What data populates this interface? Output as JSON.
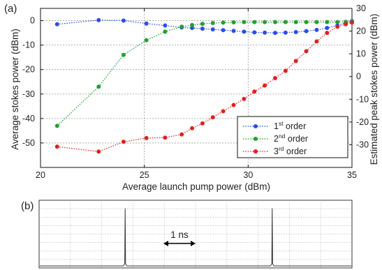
{
  "panel_a_label": "(a)",
  "panel_b_label": "(b)",
  "chart_data": [
    {
      "type": "line",
      "xlabel": "Average launch pump power (dBm)",
      "ylabel": "Average stokes power (dBm)",
      "y2label": "Estimated peak stokes power (dBm)",
      "xlim": [
        20,
        35
      ],
      "ylim": [
        -60,
        5
      ],
      "y2lim": [
        -40,
        30
      ],
      "xticks": [
        20,
        25,
        30,
        35
      ],
      "yticks": [
        -50,
        -40,
        -30,
        -20,
        -10,
        0
      ],
      "y2ticks": [
        -30,
        -20,
        -10,
        0,
        10,
        20,
        30
      ],
      "grid": true,
      "legend_position": "lower-right",
      "series": [
        {
          "name": "1st order",
          "color": "#2a4cf0",
          "x": [
            20.8,
            22.8,
            24.0,
            25.1,
            26.0,
            26.8,
            27.3,
            27.8,
            28.3,
            28.8,
            29.3,
            29.8,
            30.3,
            30.8,
            31.3,
            31.8,
            32.3,
            32.8,
            33.3,
            33.8,
            34.3,
            34.7,
            35.0
          ],
          "y": [
            -1.5,
            0.2,
            0.0,
            -1.2,
            -2.0,
            -2.8,
            -3.0,
            -3.3,
            -3.6,
            -3.9,
            -4.2,
            -4.5,
            -4.8,
            -4.9,
            -5.0,
            -4.9,
            -4.7,
            -4.3,
            -3.8,
            -3.0,
            -2.0,
            -0.8,
            -0.2
          ]
        },
        {
          "name": "2nd order",
          "color": "#22a030",
          "x": [
            20.8,
            22.8,
            24.0,
            25.1,
            26.0,
            26.8,
            27.3,
            27.8,
            28.3,
            28.8,
            29.3,
            29.8,
            30.3,
            30.8,
            31.3,
            31.8,
            32.3,
            32.8,
            33.3,
            33.8,
            34.3,
            34.7,
            35.0
          ],
          "y": [
            -43.0,
            -27.0,
            -14.0,
            -8.0,
            -4.5,
            -2.5,
            -1.8,
            -1.3,
            -1.0,
            -0.8,
            -0.7,
            -0.6,
            -0.6,
            -0.6,
            -0.6,
            -0.6,
            -0.6,
            -0.6,
            -0.6,
            -0.6,
            -0.6,
            -0.5,
            -0.5
          ]
        },
        {
          "name": "3rd order",
          "color": "#e02020",
          "x": [
            20.8,
            22.8,
            24.0,
            25.1,
            26.0,
            26.8,
            27.3,
            27.8,
            28.3,
            28.8,
            29.3,
            29.8,
            30.3,
            30.8,
            31.3,
            31.8,
            32.3,
            32.8,
            33.3,
            33.8,
            34.3,
            34.7,
            35.0
          ],
          "y": [
            -51.5,
            -53.5,
            -49.5,
            -48.0,
            -47.8,
            -46.5,
            -44.0,
            -42.0,
            -39.5,
            -37.0,
            -34.5,
            -32.0,
            -29.0,
            -26.5,
            -23.5,
            -20.5,
            -16.5,
            -12.5,
            -8.5,
            -5.0,
            -2.5,
            -1.5,
            -0.8
          ]
        }
      ]
    },
    {
      "type": "line",
      "annotation": "1 ns",
      "grid": true,
      "baseline": 0.03,
      "pulse_positions": [
        0.275,
        0.745
      ],
      "pulse_height": 0.88
    }
  ]
}
